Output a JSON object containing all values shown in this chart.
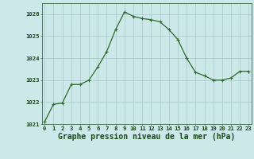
{
  "x": [
    0,
    1,
    2,
    3,
    4,
    5,
    6,
    7,
    8,
    9,
    10,
    11,
    12,
    13,
    14,
    15,
    16,
    17,
    18,
    19,
    20,
    21,
    22,
    23
  ],
  "y": [
    1021.1,
    1021.9,
    1021.95,
    1022.8,
    1022.8,
    1023.0,
    1023.6,
    1024.3,
    1025.3,
    1026.1,
    1025.9,
    1025.8,
    1025.75,
    1025.65,
    1025.3,
    1024.85,
    1024.0,
    1023.35,
    1023.2,
    1023.0,
    1023.0,
    1023.1,
    1023.4,
    1023.4
  ],
  "line_color": "#2d6a2d",
  "marker": "+",
  "marker_size": 3.5,
  "marker_linewidth": 0.8,
  "bg_color": "#cce8e8",
  "grid_color": "#a8c8c8",
  "title": "Graphe pression niveau de la mer (hPa)",
  "title_color": "#1a4a1a",
  "ylim": [
    1021,
    1026.5
  ],
  "xlim": [
    -0.3,
    23.3
  ],
  "yticks": [
    1021,
    1022,
    1023,
    1024,
    1025,
    1026
  ],
  "xtick_labels": [
    "0",
    "1",
    "2",
    "3",
    "4",
    "5",
    "6",
    "7",
    "8",
    "9",
    "10",
    "11",
    "12",
    "13",
    "14",
    "15",
    "16",
    "17",
    "18",
    "19",
    "20",
    "21",
    "22",
    "23"
  ],
  "tick_color": "#1a4a1a",
  "tick_fontsize": 5.2,
  "title_fontsize": 7.0,
  "linewidth": 0.9
}
